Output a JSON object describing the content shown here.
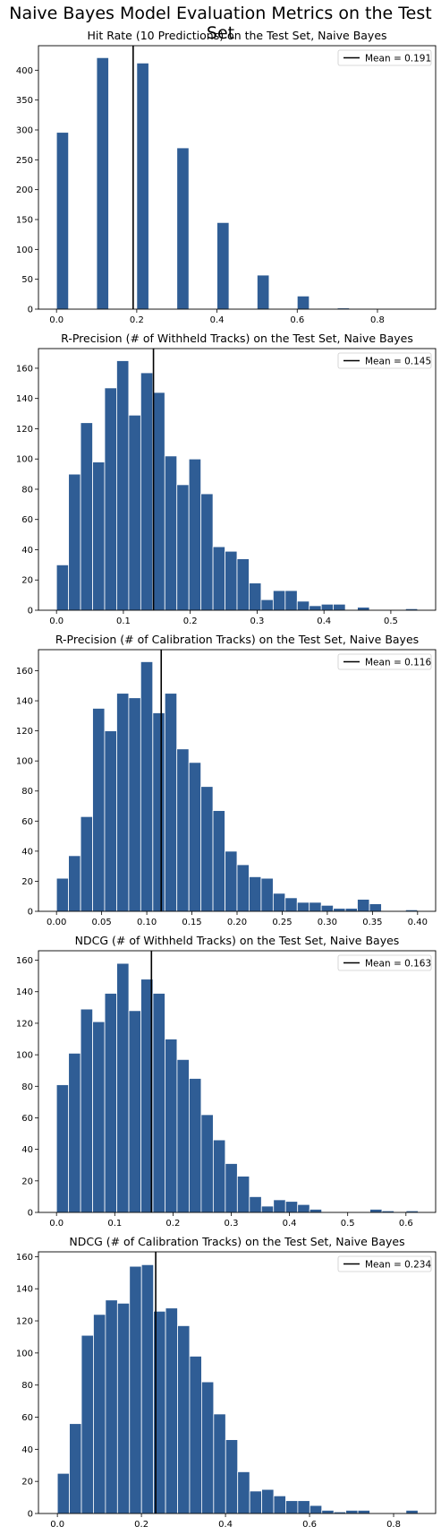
{
  "figure": {
    "title": "Naive Bayes Model Evaluation Metrics on the Test Set"
  },
  "colors": {
    "bar_fill": "#2f5d95",
    "bar_edge": "#ffffff",
    "mean_line": "#000000",
    "axis": "#000000",
    "legend_border": "#cccccc"
  },
  "chart_data": [
    {
      "type": "bar",
      "title": "Hit Rate (10 Predictions) on the Test Set, Naive Bayes",
      "xlabel": "",
      "ylabel": "",
      "xlim": [
        -0.045,
        0.945
      ],
      "ylim": [
        0,
        441
      ],
      "xticks": [
        0.0,
        0.2,
        0.4,
        0.6,
        0.8
      ],
      "xtick_decimals": 1,
      "yticks": [
        0,
        50,
        100,
        150,
        200,
        250,
        300,
        350,
        400
      ],
      "grid": false,
      "bin_width": 0.03,
      "bins": [
        {
          "x0": 0.0,
          "count": 296
        },
        {
          "x0": 0.1,
          "count": 421
        },
        {
          "x0": 0.2,
          "count": 412
        },
        {
          "x0": 0.3,
          "count": 270
        },
        {
          "x0": 0.4,
          "count": 145
        },
        {
          "x0": 0.5,
          "count": 57
        },
        {
          "x0": 0.6,
          "count": 22
        },
        {
          "x0": 0.7,
          "count": 2
        },
        {
          "x0": 0.8,
          "count": 0
        },
        {
          "x0": 0.87,
          "count": 0
        }
      ],
      "mean": 0.191,
      "legend": {
        "label": "Mean = 0.191",
        "position": "top-right"
      }
    },
    {
      "type": "bar",
      "title": "R-Precision (# of Withheld Tracks) on the Test Set, Naive Bayes",
      "xlabel": "",
      "ylabel": "",
      "xlim": [
        -0.027,
        0.567
      ],
      "ylim": [
        0,
        173
      ],
      "xticks": [
        0.0,
        0.1,
        0.2,
        0.3,
        0.4,
        0.5
      ],
      "xtick_decimals": 1,
      "yticks": [
        0,
        20,
        40,
        60,
        80,
        100,
        120,
        140,
        160
      ],
      "grid": false,
      "bin_width": 0.018,
      "bins": [
        {
          "x0": 0.0,
          "count": 30
        },
        {
          "x0": 0.018,
          "count": 90
        },
        {
          "x0": 0.036,
          "count": 124
        },
        {
          "x0": 0.054,
          "count": 98
        },
        {
          "x0": 0.072,
          "count": 147
        },
        {
          "x0": 0.09,
          "count": 165
        },
        {
          "x0": 0.108,
          "count": 129
        },
        {
          "x0": 0.126,
          "count": 157
        },
        {
          "x0": 0.144,
          "count": 144
        },
        {
          "x0": 0.162,
          "count": 102
        },
        {
          "x0": 0.18,
          "count": 83
        },
        {
          "x0": 0.198,
          "count": 100
        },
        {
          "x0": 0.216,
          "count": 77
        },
        {
          "x0": 0.234,
          "count": 42
        },
        {
          "x0": 0.252,
          "count": 39
        },
        {
          "x0": 0.27,
          "count": 34
        },
        {
          "x0": 0.288,
          "count": 18
        },
        {
          "x0": 0.306,
          "count": 7
        },
        {
          "x0": 0.324,
          "count": 13
        },
        {
          "x0": 0.342,
          "count": 13
        },
        {
          "x0": 0.36,
          "count": 6
        },
        {
          "x0": 0.378,
          "count": 3
        },
        {
          "x0": 0.396,
          "count": 4
        },
        {
          "x0": 0.414,
          "count": 4
        },
        {
          "x0": 0.432,
          "count": 0
        },
        {
          "x0": 0.45,
          "count": 2
        },
        {
          "x0": 0.468,
          "count": 0
        },
        {
          "x0": 0.486,
          "count": 0
        },
        {
          "x0": 0.504,
          "count": 0
        },
        {
          "x0": 0.522,
          "count": 1
        }
      ],
      "mean": 0.145,
      "legend": {
        "label": "Mean = 0.145",
        "position": "top-right"
      }
    },
    {
      "type": "bar",
      "title": "R-Precision (# of Calibration Tracks) on the Test Set, Naive Bayes",
      "xlabel": "",
      "ylabel": "",
      "xlim": [
        -0.02,
        0.42
      ],
      "ylim": [
        0,
        174
      ],
      "xticks": [
        0.0,
        0.05,
        0.1,
        0.15,
        0.2,
        0.25,
        0.3,
        0.35,
        0.4
      ],
      "xtick_decimals": 2,
      "yticks": [
        0,
        20,
        40,
        60,
        80,
        100,
        120,
        140,
        160
      ],
      "grid": false,
      "bin_width": 0.0133,
      "bins": [
        {
          "x0": 0.0,
          "count": 22
        },
        {
          "x0": 0.0133,
          "count": 37
        },
        {
          "x0": 0.0267,
          "count": 63
        },
        {
          "x0": 0.04,
          "count": 135
        },
        {
          "x0": 0.0533,
          "count": 120
        },
        {
          "x0": 0.0667,
          "count": 145
        },
        {
          "x0": 0.08,
          "count": 142
        },
        {
          "x0": 0.0933,
          "count": 166
        },
        {
          "x0": 0.1067,
          "count": 132
        },
        {
          "x0": 0.12,
          "count": 145
        },
        {
          "x0": 0.1333,
          "count": 108
        },
        {
          "x0": 0.1467,
          "count": 99
        },
        {
          "x0": 0.16,
          "count": 83
        },
        {
          "x0": 0.1733,
          "count": 67
        },
        {
          "x0": 0.1867,
          "count": 40
        },
        {
          "x0": 0.2,
          "count": 31
        },
        {
          "x0": 0.2133,
          "count": 23
        },
        {
          "x0": 0.2267,
          "count": 22
        },
        {
          "x0": 0.24,
          "count": 12
        },
        {
          "x0": 0.2533,
          "count": 9
        },
        {
          "x0": 0.2667,
          "count": 6
        },
        {
          "x0": 0.28,
          "count": 6
        },
        {
          "x0": 0.2933,
          "count": 4
        },
        {
          "x0": 0.3067,
          "count": 2
        },
        {
          "x0": 0.32,
          "count": 2
        },
        {
          "x0": 0.3333,
          "count": 8
        },
        {
          "x0": 0.3467,
          "count": 5
        },
        {
          "x0": 0.36,
          "count": 0
        },
        {
          "x0": 0.3733,
          "count": 0
        },
        {
          "x0": 0.3867,
          "count": 1
        }
      ],
      "mean": 0.116,
      "legend": {
        "label": "Mean = 0.116",
        "position": "top-right"
      }
    },
    {
      "type": "bar",
      "title": "NDCG (# of Withheld Tracks) on the Test Set, Naive Bayes",
      "xlabel": "",
      "ylabel": "",
      "xlim": [
        -0.031,
        0.651
      ],
      "ylim": [
        0,
        166
      ],
      "xticks": [
        0.0,
        0.1,
        0.2,
        0.3,
        0.4,
        0.5,
        0.6
      ],
      "xtick_decimals": 1,
      "yticks": [
        0,
        20,
        40,
        60,
        80,
        100,
        120,
        140,
        160
      ],
      "grid": false,
      "bin_width": 0.0207,
      "bins": [
        {
          "x0": 0.0,
          "count": 81
        },
        {
          "x0": 0.0207,
          "count": 101
        },
        {
          "x0": 0.0414,
          "count": 129
        },
        {
          "x0": 0.0621,
          "count": 121
        },
        {
          "x0": 0.0828,
          "count": 139
        },
        {
          "x0": 0.1035,
          "count": 158
        },
        {
          "x0": 0.1242,
          "count": 128
        },
        {
          "x0": 0.1449,
          "count": 148
        },
        {
          "x0": 0.1656,
          "count": 139
        },
        {
          "x0": 0.1863,
          "count": 110
        },
        {
          "x0": 0.207,
          "count": 97
        },
        {
          "x0": 0.2277,
          "count": 85
        },
        {
          "x0": 0.2484,
          "count": 62
        },
        {
          "x0": 0.2691,
          "count": 46
        },
        {
          "x0": 0.2898,
          "count": 31
        },
        {
          "x0": 0.3105,
          "count": 23
        },
        {
          "x0": 0.3312,
          "count": 10
        },
        {
          "x0": 0.3519,
          "count": 4
        },
        {
          "x0": 0.3726,
          "count": 8
        },
        {
          "x0": 0.3933,
          "count": 7
        },
        {
          "x0": 0.414,
          "count": 5
        },
        {
          "x0": 0.4347,
          "count": 2
        },
        {
          "x0": 0.4554,
          "count": 0
        },
        {
          "x0": 0.4761,
          "count": 0
        },
        {
          "x0": 0.4968,
          "count": 0
        },
        {
          "x0": 0.5175,
          "count": 0
        },
        {
          "x0": 0.5382,
          "count": 2
        },
        {
          "x0": 0.5589,
          "count": 1
        },
        {
          "x0": 0.5796,
          "count": 0
        },
        {
          "x0": 0.6003,
          "count": 1
        }
      ],
      "mean": 0.163,
      "legend": {
        "label": "Mean = 0.163",
        "position": "top-right"
      }
    },
    {
      "type": "bar",
      "title": "NDCG (# of Calibration Tracks) on the Test Set, Naive Bayes",
      "xlabel": "",
      "ylabel": "",
      "xlim": [
        -0.045,
        0.9
      ],
      "ylim": [
        0,
        163
      ],
      "xticks": [
        0.0,
        0.2,
        0.4,
        0.6,
        0.8
      ],
      "xtick_decimals": 1,
      "yticks": [
        0,
        20,
        40,
        60,
        80,
        100,
        120,
        140,
        160
      ],
      "grid": false,
      "bin_width": 0.0286,
      "bins": [
        {
          "x0": 0.0,
          "count": 25
        },
        {
          "x0": 0.0286,
          "count": 56
        },
        {
          "x0": 0.0572,
          "count": 111
        },
        {
          "x0": 0.0858,
          "count": 124
        },
        {
          "x0": 0.1144,
          "count": 133
        },
        {
          "x0": 0.143,
          "count": 131
        },
        {
          "x0": 0.1716,
          "count": 154
        },
        {
          "x0": 0.2002,
          "count": 155
        },
        {
          "x0": 0.2288,
          "count": 126
        },
        {
          "x0": 0.2574,
          "count": 128
        },
        {
          "x0": 0.286,
          "count": 117
        },
        {
          "x0": 0.3146,
          "count": 98
        },
        {
          "x0": 0.3432,
          "count": 82
        },
        {
          "x0": 0.3718,
          "count": 62
        },
        {
          "x0": 0.4004,
          "count": 46
        },
        {
          "x0": 0.429,
          "count": 26
        },
        {
          "x0": 0.4576,
          "count": 14
        },
        {
          "x0": 0.4862,
          "count": 15
        },
        {
          "x0": 0.5148,
          "count": 11
        },
        {
          "x0": 0.5434,
          "count": 8
        },
        {
          "x0": 0.572,
          "count": 8
        },
        {
          "x0": 0.6006,
          "count": 5
        },
        {
          "x0": 0.6292,
          "count": 2
        },
        {
          "x0": 0.6578,
          "count": 1
        },
        {
          "x0": 0.6864,
          "count": 2
        },
        {
          "x0": 0.715,
          "count": 2
        },
        {
          "x0": 0.7436,
          "count": 0
        },
        {
          "x0": 0.7722,
          "count": 0
        },
        {
          "x0": 0.8008,
          "count": 0
        },
        {
          "x0": 0.8294,
          "count": 2
        }
      ],
      "mean": 0.234,
      "legend": {
        "label": "Mean = 0.234",
        "position": "top-right"
      }
    }
  ]
}
